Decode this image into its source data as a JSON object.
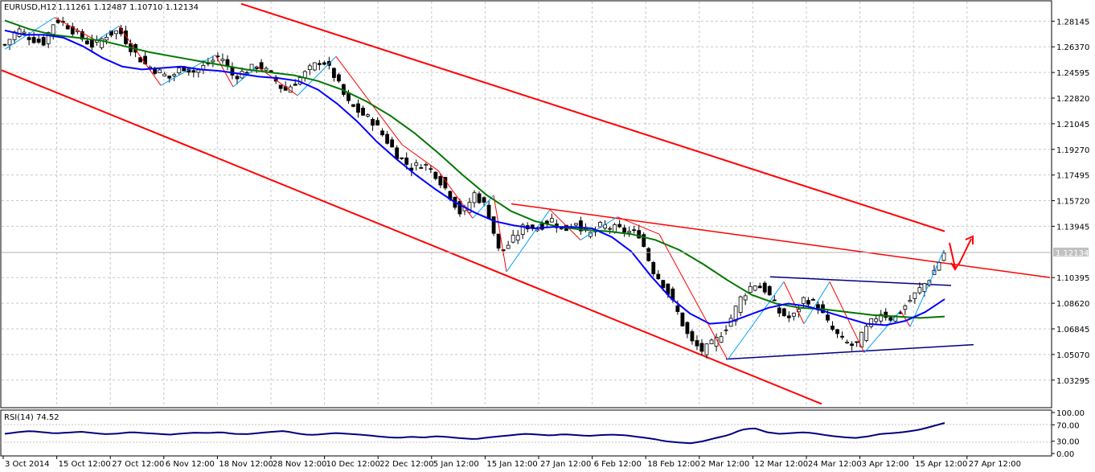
{
  "header": {
    "symbol": "EURUSD,H12",
    "ohlc": "1.11261 1.12487 1.10710 1.12134"
  },
  "rsi_panel": {
    "title": "RSI(14) 74.52",
    "ticks": [
      "100.00",
      "70.00",
      "30.00",
      "0.00"
    ]
  },
  "colors": {
    "up_candle": "#ffffff",
    "down_candle": "#000000",
    "ma_fast": "#0000ff",
    "ma_slow": "#007700",
    "trend_lines": "#ff0000",
    "pattern_lines": "#000080",
    "rsi_line": "#000080",
    "zigzag_up": "#00a0ff",
    "zigzag_down": "#ff0000",
    "current_price_tag": "#c0c0c0"
  },
  "chart_data": {
    "type": "candlestick",
    "price_axis_ticks": [
      "1.28145",
      "1.26370",
      "1.24595",
      "1.22820",
      "1.21045",
      "1.19270",
      "1.17495",
      "1.15720",
      "1.13945",
      "1.10395",
      "1.08620",
      "1.06845",
      "1.05070",
      "1.03295"
    ],
    "current_price": "1.12134",
    "ylim": [
      1.015,
      1.295
    ],
    "time_axis_labels": [
      "3 Oct 2014",
      "15 Oct 12:00",
      "27 Oct 12:00",
      "6 Nov 12:00",
      "18 Nov 12:00",
      "28 Nov 12:00",
      "10 Dec 12:00",
      "22 Dec 12:00",
      "5 Jan 12:00",
      "15 Jan 12:00",
      "27 Jan 12:00",
      "6 Feb 12:00",
      "18 Feb 12:00",
      "2 Mar 12:00",
      "12 Mar 12:00",
      "24 Mar 12:00",
      "3 Apr 12:00",
      "15 Apr 12:00",
      "27 Apr 12:00"
    ],
    "close_path": [
      1.265,
      1.276,
      1.27,
      1.266,
      1.283,
      1.278,
      1.27,
      1.264,
      1.272,
      1.275,
      1.262,
      1.252,
      1.247,
      1.242,
      1.25,
      1.246,
      1.252,
      1.258,
      1.243,
      1.247,
      1.251,
      1.244,
      1.233,
      1.24,
      1.248,
      1.255,
      1.243,
      1.225,
      1.218,
      1.212,
      1.2,
      1.188,
      1.18,
      1.183,
      1.175,
      1.162,
      1.147,
      1.162,
      1.152,
      1.12,
      1.13,
      1.14,
      1.138,
      1.145,
      1.136,
      1.143,
      1.133,
      1.14,
      1.138,
      1.136,
      1.134,
      1.11,
      1.098,
      1.08,
      1.06,
      1.053,
      1.06,
      1.072,
      1.09,
      1.1,
      1.095,
      1.08,
      1.075,
      1.09,
      1.085,
      1.07,
      1.06,
      1.056,
      1.07,
      1.08,
      1.075,
      1.085,
      1.095,
      1.105,
      1.121
    ],
    "ma_fast_path": [
      1.275,
      1.272,
      1.272,
      1.27,
      1.264,
      1.256,
      1.25,
      1.248,
      1.249,
      1.25,
      1.248,
      1.247,
      1.245,
      1.243,
      1.242,
      1.24,
      1.234,
      1.224,
      1.212,
      1.198,
      1.186,
      1.175,
      1.165,
      1.156,
      1.149,
      1.143,
      1.14,
      1.138,
      1.139,
      1.139,
      1.138,
      1.132,
      1.122,
      1.105,
      1.09,
      1.079,
      1.072,
      1.073,
      1.078,
      1.083,
      1.086,
      1.084,
      1.08,
      1.076,
      1.072,
      1.071,
      1.074,
      1.08,
      1.089
    ],
    "ma_slow_path": [
      1.282,
      1.276,
      1.272,
      1.27,
      1.268,
      1.264,
      1.26,
      1.257,
      1.254,
      1.251,
      1.248,
      1.246,
      1.244,
      1.24,
      1.234,
      1.226,
      1.216,
      1.204,
      1.19,
      1.175,
      1.161,
      1.15,
      1.143,
      1.139,
      1.137,
      1.136,
      1.134,
      1.13,
      1.123,
      1.113,
      1.102,
      1.092,
      1.086,
      1.083,
      1.082,
      1.08,
      1.078,
      1.077,
      1.076,
      1.077
    ],
    "rsi_values": [
      48,
      52,
      55,
      52,
      49,
      51,
      53,
      50,
      47,
      49,
      52,
      50,
      48,
      46,
      49,
      51,
      50,
      52,
      48,
      47,
      50,
      53,
      55,
      49,
      45,
      47,
      50,
      48,
      46,
      43,
      40,
      38,
      41,
      39,
      42,
      40,
      37,
      35,
      39,
      42,
      45,
      48,
      46,
      44,
      47,
      45,
      43,
      45,
      46,
      44,
      40,
      36,
      30,
      27,
      25,
      30,
      38,
      45,
      58,
      62,
      52,
      48,
      50,
      52,
      48,
      43,
      40,
      38,
      42,
      48,
      50,
      53,
      58,
      66,
      74.52
    ]
  }
}
